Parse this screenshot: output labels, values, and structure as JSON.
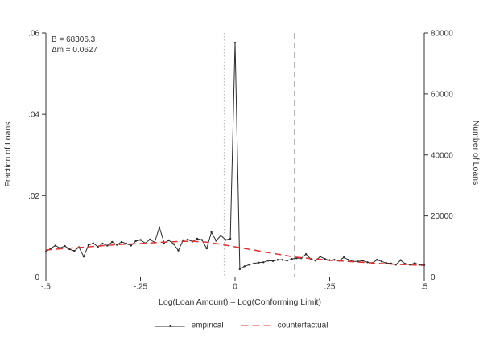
{
  "figure": {
    "background": "#ffffff",
    "annotation": {
      "line1": "B = 68306.3",
      "line2": "Δm = 0.0627"
    },
    "legend": {
      "empirical_label": "empirical",
      "counterfactual_label": "counterfactual"
    }
  },
  "chart_data": {
    "type": "line",
    "title": "",
    "xlabel": "Log(Loan Amount) – Log(Conforming Limit)",
    "ylabel_left": "Fraction of Loans",
    "ylabel_right": "Number of Loans",
    "xlim": [
      -0.5,
      0.5
    ],
    "ylim_left": [
      0,
      0.06
    ],
    "ylim_right": [
      0,
      80000
    ],
    "grid": false,
    "legend_position": "bottom-center",
    "x_tick_values": [
      -0.5,
      -0.25,
      0,
      0.25,
      0.5
    ],
    "x_tick_labels": [
      "-.5",
      "-.25",
      "0",
      ".25",
      ".5"
    ],
    "y_left_tick_values": [
      0,
      0.02,
      0.04,
      0.06
    ],
    "y_left_tick_labels": [
      "0",
      ".02",
      ".04",
      ".06"
    ],
    "y_right_tick_values": [
      0,
      20000,
      40000,
      60000,
      80000
    ],
    "y_right_tick_labels": [
      "0",
      "20000",
      "40000",
      "60000",
      "80000"
    ],
    "reference_lines": [
      {
        "x": -0.029,
        "style": "dotted",
        "color": "#b0b0b0"
      },
      {
        "x": 0.157,
        "style": "dashed",
        "color": "#909090"
      }
    ],
    "series": [
      {
        "name": "empirical",
        "color": "#2b2b2b",
        "style": "solid",
        "markers": true,
        "bin_start": -0.5,
        "bin_width": 0.0125,
        "values": [
          0.0062,
          0.007,
          0.0077,
          0.0071,
          0.0076,
          0.0068,
          0.0064,
          0.0073,
          0.005,
          0.0078,
          0.0083,
          0.0074,
          0.0082,
          0.0077,
          0.0086,
          0.0079,
          0.0086,
          0.0082,
          0.0077,
          0.0088,
          0.0091,
          0.0083,
          0.0092,
          0.0085,
          0.0122,
          0.0084,
          0.009,
          0.0081,
          0.0065,
          0.009,
          0.0092,
          0.0087,
          0.0094,
          0.0091,
          0.007,
          0.011,
          0.0089,
          0.0102,
          0.0091,
          0.0094,
          0.0576,
          0.0019,
          0.0026,
          0.003,
          0.0033,
          0.0035,
          0.0036,
          0.004,
          0.0039,
          0.0042,
          0.0042,
          0.004,
          0.0044,
          0.0046,
          0.0046,
          0.0056,
          0.0044,
          0.004,
          0.005,
          0.0044,
          0.0041,
          0.0042,
          0.004,
          0.0048,
          0.0042,
          0.0038,
          0.0038,
          0.004,
          0.0036,
          0.0034,
          0.0042,
          0.0038,
          0.0034,
          0.0033,
          0.003,
          0.0041,
          0.0032,
          0.003,
          0.0034,
          0.003,
          0.0029
        ]
      },
      {
        "name": "counterfactual",
        "color": "#e03030",
        "style": "dashed",
        "markers": false,
        "x": [
          -0.5,
          -0.45,
          -0.4,
          -0.35,
          -0.3,
          -0.25,
          -0.2,
          -0.15,
          -0.12,
          -0.08,
          -0.05,
          -0.025,
          0,
          0.025,
          0.05,
          0.075,
          0.1,
          0.125,
          0.157,
          0.2,
          0.25,
          0.3,
          0.35,
          0.4,
          0.45,
          0.5
        ],
        "values": [
          0.0066,
          0.007,
          0.0073,
          0.0077,
          0.008,
          0.0082,
          0.0085,
          0.0087,
          0.0088,
          0.0086,
          0.0082,
          0.0078,
          0.0074,
          0.007,
          0.0066,
          0.0062,
          0.0058,
          0.0054,
          0.0049,
          0.0045,
          0.0041,
          0.0038,
          0.0035,
          0.0032,
          0.003,
          0.0028
        ]
      }
    ]
  }
}
